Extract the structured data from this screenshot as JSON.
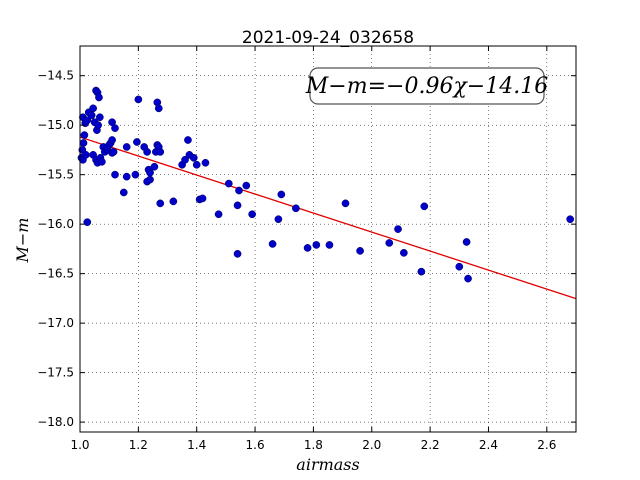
{
  "chart_data": {
    "type": "scatter",
    "title": "2021-09-24_032658",
    "xlabel": "airmass",
    "ylabel": "M−m",
    "xlim": [
      1.0,
      2.7
    ],
    "ylim": [
      -18.1,
      -14.2
    ],
    "x_ticks": [
      1.0,
      1.2,
      1.4,
      1.6,
      1.8,
      2.0,
      2.2,
      2.4,
      2.6
    ],
    "x_tick_labels": [
      "1.0",
      "1.2",
      "1.4",
      "1.6",
      "1.8",
      "2.0",
      "2.2",
      "2.4",
      "2.6"
    ],
    "y_ticks": [
      -14.5,
      -15.0,
      -15.5,
      -16.0,
      -16.5,
      -17.0,
      -17.5,
      -18.0
    ],
    "y_tick_labels": [
      "−14.5",
      "−15.0",
      "−15.5",
      "−16.0",
      "−16.5",
      "−17.0",
      "−17.5",
      "−18.0"
    ],
    "grid": true,
    "fit_annotation": "M−m=−0.96χ−14.16",
    "fit_line": {
      "slope": -0.96,
      "intercept": -14.16,
      "color": "#e00000"
    },
    "point_color": "#0000c8",
    "points": [
      {
        "x": 1.005,
        "y": -15.33
      },
      {
        "x": 1.008,
        "y": -15.25
      },
      {
        "x": 1.01,
        "y": -15.35
      },
      {
        "x": 1.012,
        "y": -15.18
      },
      {
        "x": 1.015,
        "y": -15.1
      },
      {
        "x": 1.02,
        "y": -15.3
      },
      {
        "x": 1.01,
        "y": -14.92
      },
      {
        "x": 1.018,
        "y": -14.98
      },
      {
        "x": 1.025,
        "y": -14.95
      },
      {
        "x": 1.03,
        "y": -14.87
      },
      {
        "x": 1.04,
        "y": -14.9
      },
      {
        "x": 1.045,
        "y": -14.83
      },
      {
        "x": 1.05,
        "y": -14.97
      },
      {
        "x": 1.055,
        "y": -14.65
      },
      {
        "x": 1.06,
        "y": -14.67
      },
      {
        "x": 1.065,
        "y": -14.72
      },
      {
        "x": 1.058,
        "y": -15.05
      },
      {
        "x": 1.062,
        "y": -15.0
      },
      {
        "x": 1.068,
        "y": -14.92
      },
      {
        "x": 1.025,
        "y": -15.98
      },
      {
        "x": 1.045,
        "y": -15.3
      },
      {
        "x": 1.055,
        "y": -15.35
      },
      {
        "x": 1.06,
        "y": -15.38
      },
      {
        "x": 1.07,
        "y": -15.33
      },
      {
        "x": 1.075,
        "y": -15.37
      },
      {
        "x": 1.08,
        "y": -15.22
      },
      {
        "x": 1.085,
        "y": -15.27
      },
      {
        "x": 1.095,
        "y": -15.25
      },
      {
        "x": 1.1,
        "y": -15.2
      },
      {
        "x": 1.105,
        "y": -15.18
      },
      {
        "x": 1.11,
        "y": -15.28
      },
      {
        "x": 1.115,
        "y": -15.27
      },
      {
        "x": 1.11,
        "y": -14.97
      },
      {
        "x": 1.12,
        "y": -15.03
      },
      {
        "x": 1.11,
        "y": -15.15
      },
      {
        "x": 1.12,
        "y": -15.5
      },
      {
        "x": 1.15,
        "y": -15.68
      },
      {
        "x": 1.16,
        "y": -15.52
      },
      {
        "x": 1.16,
        "y": -15.22
      },
      {
        "x": 1.19,
        "y": -15.5
      },
      {
        "x": 1.195,
        "y": -15.17
      },
      {
        "x": 1.2,
        "y": -14.74
      },
      {
        "x": 1.22,
        "y": -15.22
      },
      {
        "x": 1.23,
        "y": -15.27
      },
      {
        "x": 1.23,
        "y": -15.57
      },
      {
        "x": 1.24,
        "y": -15.55
      },
      {
        "x": 1.235,
        "y": -15.45
      },
      {
        "x": 1.24,
        "y": -15.48
      },
      {
        "x": 1.255,
        "y": -15.42
      },
      {
        "x": 1.26,
        "y": -15.27
      },
      {
        "x": 1.265,
        "y": -15.2
      },
      {
        "x": 1.27,
        "y": -15.22
      },
      {
        "x": 1.275,
        "y": -15.27
      },
      {
        "x": 1.265,
        "y": -14.77
      },
      {
        "x": 1.27,
        "y": -14.83
      },
      {
        "x": 1.275,
        "y": -15.79
      },
      {
        "x": 1.32,
        "y": -15.77
      },
      {
        "x": 1.35,
        "y": -15.4
      },
      {
        "x": 1.36,
        "y": -15.35
      },
      {
        "x": 1.37,
        "y": -15.15
      },
      {
        "x": 1.375,
        "y": -15.3
      },
      {
        "x": 1.39,
        "y": -15.33
      },
      {
        "x": 1.4,
        "y": -15.4
      },
      {
        "x": 1.41,
        "y": -15.75
      },
      {
        "x": 1.42,
        "y": -15.74
      },
      {
        "x": 1.43,
        "y": -15.38
      },
      {
        "x": 1.475,
        "y": -15.9
      },
      {
        "x": 1.51,
        "y": -15.59
      },
      {
        "x": 1.54,
        "y": -15.81
      },
      {
        "x": 1.545,
        "y": -15.66
      },
      {
        "x": 1.54,
        "y": -16.3
      },
      {
        "x": 1.57,
        "y": -15.61
      },
      {
        "x": 1.59,
        "y": -15.9
      },
      {
        "x": 1.66,
        "y": -16.2
      },
      {
        "x": 1.68,
        "y": -15.95
      },
      {
        "x": 1.69,
        "y": -15.7
      },
      {
        "x": 1.74,
        "y": -15.84
      },
      {
        "x": 1.78,
        "y": -16.24
      },
      {
        "x": 1.81,
        "y": -16.21
      },
      {
        "x": 1.855,
        "y": -16.21
      },
      {
        "x": 1.91,
        "y": -15.79
      },
      {
        "x": 1.96,
        "y": -16.27
      },
      {
        "x": 2.06,
        "y": -16.19
      },
      {
        "x": 2.09,
        "y": -16.05
      },
      {
        "x": 2.11,
        "y": -16.29
      },
      {
        "x": 2.17,
        "y": -16.48
      },
      {
        "x": 2.18,
        "y": -15.82
      },
      {
        "x": 2.3,
        "y": -16.43
      },
      {
        "x": 2.325,
        "y": -16.18
      },
      {
        "x": 2.33,
        "y": -16.55
      },
      {
        "x": 2.68,
        "y": -15.95
      }
    ]
  }
}
